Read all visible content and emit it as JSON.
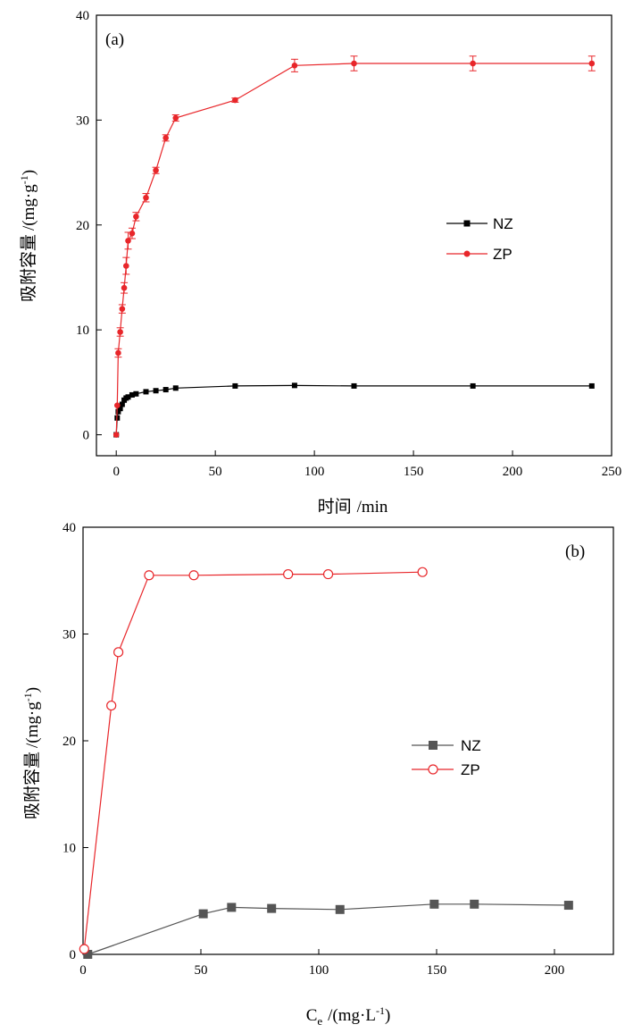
{
  "chart_data": [
    {
      "type": "line",
      "panel_label": "(a)",
      "xlabel_zh": "时间",
      "xlabel_unit": "/min",
      "ylabel_zh": "吸附容量",
      "ylabel_unit": "/(mg·g",
      "ylabel_sup": "-1",
      "ylabel_close": ")",
      "xlim": [
        -10,
        250
      ],
      "ylim": [
        -2,
        40
      ],
      "xticks": [
        0,
        50,
        100,
        150,
        200,
        250
      ],
      "yticks": [
        0,
        10,
        20,
        30,
        40
      ],
      "legend_position": "middle-right",
      "series": [
        {
          "name": "NZ",
          "color": "#000000",
          "marker": "square",
          "x": [
            0,
            0.5,
            1,
            2,
            3,
            4,
            5,
            6,
            8,
            10,
            15,
            20,
            25,
            30,
            60,
            90,
            120,
            180,
            240
          ],
          "y": [
            0,
            1.6,
            2.2,
            2.5,
            2.9,
            3.3,
            3.5,
            3.6,
            3.8,
            3.9,
            4.1,
            4.2,
            4.3,
            4.45,
            4.65,
            4.7,
            4.65,
            4.65,
            4.65
          ],
          "error": []
        },
        {
          "name": "ZP",
          "color": "#e8262a",
          "marker": "circle",
          "x": [
            0,
            0.5,
            1,
            2,
            3,
            4,
            5,
            6,
            8,
            10,
            15,
            20,
            25,
            30,
            60,
            90,
            120,
            180,
            240
          ],
          "y": [
            0,
            2.8,
            7.8,
            9.8,
            12.0,
            14.0,
            16.1,
            18.5,
            19.2,
            20.8,
            22.6,
            25.2,
            28.3,
            30.2,
            31.9,
            35.2,
            35.4,
            35.4,
            35.4
          ],
          "error": [
            0,
            0,
            0.4,
            0.4,
            0.4,
            0.5,
            0.8,
            0.8,
            0.5,
            0.4,
            0.4,
            0.3,
            0.3,
            0.3,
            0.2,
            0.6,
            0.7,
            0.7,
            0.7
          ]
        }
      ]
    },
    {
      "type": "line",
      "panel_label": "(b)",
      "xlabel_main": "C",
      "xlabel_sub": "e",
      "xlabel_unit": "/(mg·L",
      "xlabel_sup": "-1",
      "xlabel_close": ")",
      "ylabel_zh": "吸附容量",
      "ylabel_unit": "/(mg·g",
      "ylabel_sup": "-1",
      "ylabel_close": ")",
      "xlim": [
        0,
        225
      ],
      "ylim": [
        0,
        40
      ],
      "xticks": [
        0,
        50,
        100,
        150,
        200
      ],
      "yticks": [
        0,
        10,
        20,
        30,
        40
      ],
      "legend_position": "middle-right",
      "series": [
        {
          "name": "NZ",
          "color": "#555555",
          "marker": "square",
          "x": [
            2,
            51,
            63,
            80,
            109,
            149,
            166,
            206
          ],
          "y": [
            0,
            3.8,
            4.4,
            4.3,
            4.2,
            4.7,
            4.7,
            4.6
          ]
        },
        {
          "name": "ZP",
          "color": "#e8262a",
          "marker": "open-circle",
          "x": [
            0.5,
            12,
            15,
            28,
            47,
            87,
            104,
            144
          ],
          "y": [
            0.5,
            23.3,
            28.3,
            35.5,
            35.5,
            35.6,
            35.6,
            35.8
          ]
        }
      ]
    }
  ]
}
